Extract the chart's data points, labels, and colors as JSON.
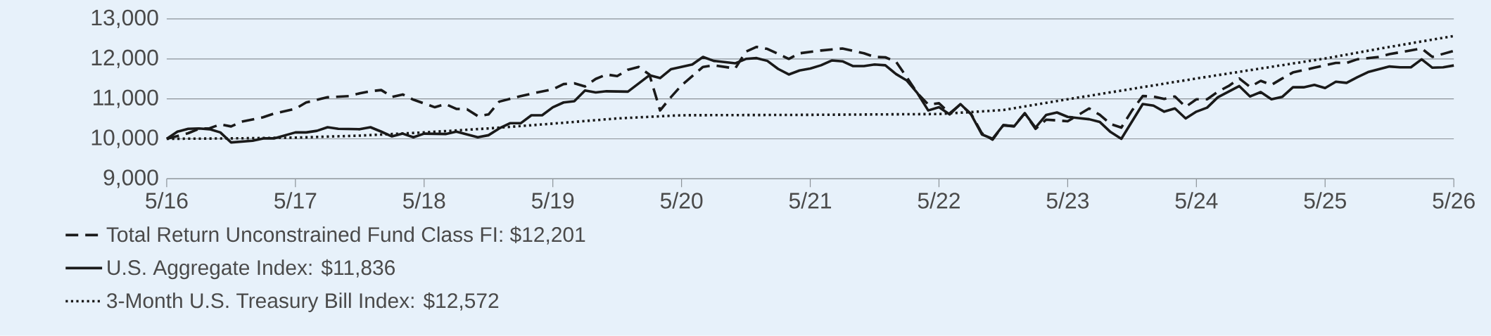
{
  "chart_data": {
    "type": "line",
    "xlim": [
      "2016-05",
      "2026-05"
    ],
    "ylim": [
      9000,
      13000
    ],
    "xticks": [
      {
        "value": "2016-05",
        "label": "5/16"
      },
      {
        "value": "2017-05",
        "label": "5/17"
      },
      {
        "value": "2018-05",
        "label": "5/18"
      },
      {
        "value": "2019-05",
        "label": "5/19"
      },
      {
        "value": "2020-05",
        "label": "5/20"
      },
      {
        "value": "2021-05",
        "label": "5/21"
      },
      {
        "value": "2022-05",
        "label": "5/22"
      },
      {
        "value": "2023-05",
        "label": "5/23"
      },
      {
        "value": "2024-05",
        "label": "5/24"
      },
      {
        "value": "2025-05",
        "label": "5/25"
      },
      {
        "value": "2026-05",
        "label": "5/26"
      }
    ],
    "yticks": [
      {
        "value": 9000,
        "label": "9,000"
      },
      {
        "value": 10000,
        "label": "10,000"
      },
      {
        "value": 11000,
        "label": "11,000"
      },
      {
        "value": 12000,
        "label": "12,000"
      },
      {
        "value": 13000,
        "label": "13,000"
      }
    ],
    "grid": "y",
    "legend": "bottom left",
    "series": [
      {
        "name": "Total Return Unconstrained Fund Class FI: $12,201",
        "color": "#1a1a1a",
        "line_style": "dashed",
        "x": [
          "2016-05",
          "2016-07",
          "2016-08",
          "2016-09",
          "2016-10",
          "2016-11",
          "2016-12",
          "2017-02",
          "2017-03",
          "2017-05",
          "2017-06",
          "2017-08",
          "2017-10",
          "2017-11",
          "2017-12",
          "2018-01",
          "2018-02",
          "2018-03",
          "2018-04",
          "2018-06",
          "2018-07",
          "2018-08",
          "2018-09",
          "2018-10",
          "2018-11",
          "2018-12",
          "2019-02",
          "2019-03",
          "2019-05",
          "2019-06",
          "2019-07",
          "2019-08",
          "2019-09",
          "2019-10",
          "2019-11",
          "2019-12",
          "2020-01",
          "2020-02",
          "2020-03",
          "2020-04",
          "2020-05",
          "2020-06",
          "2020-07",
          "2020-08",
          "2020-09",
          "2020-10",
          "2020-11",
          "2020-12",
          "2021-01",
          "2021-03",
          "2021-04",
          "2021-06",
          "2021-08",
          "2021-10",
          "2021-11",
          "2021-12",
          "2022-01",
          "2022-02",
          "2022-03",
          "2022-04",
          "2022-05",
          "2022-06",
          "2022-07",
          "2022-08",
          "2022-09",
          "2022-10",
          "2022-11",
          "2022-12",
          "2023-01",
          "2023-02",
          "2023-03",
          "2023-05",
          "2023-07",
          "2023-08",
          "2023-09",
          "2023-10",
          "2023-11",
          "2023-12",
          "2024-01",
          "2024-02",
          "2024-03",
          "2024-04",
          "2024-05",
          "2024-06",
          "2024-07",
          "2024-08",
          "2024-09",
          "2024-10",
          "2024-11",
          "2024-12",
          "2025-01",
          "2025-02",
          "2025-04",
          "2025-06",
          "2025-07",
          "2025-08",
          "2025-10",
          "2025-11",
          "2026-02",
          "2026-03",
          "2026-05"
        ],
        "values": [
          10000,
          10140,
          10250,
          10265,
          10360,
          10310,
          10430,
          10540,
          10630,
          10750,
          10910,
          11040,
          11070,
          11140,
          11190,
          11220,
          11050,
          11110,
          10980,
          10790,
          10870,
          10750,
          10740,
          10570,
          10610,
          10930,
          11070,
          11130,
          11240,
          11370,
          11390,
          11310,
          11500,
          11610,
          11570,
          11730,
          11800,
          11610,
          10710,
          11040,
          11340,
          11570,
          11800,
          11840,
          11800,
          11760,
          12180,
          12300,
          12250,
          12000,
          12140,
          12210,
          12260,
          12140,
          12050,
          12040,
          11930,
          11540,
          11140,
          10860,
          10890,
          10640,
          10860,
          10620,
          10140,
          9980,
          10340,
          10320,
          10640,
          10250,
          10480,
          10440,
          10760,
          10600,
          10370,
          10280,
          10710,
          11070,
          11060,
          11000,
          11060,
          10800,
          10990,
          10990,
          11180,
          11320,
          11510,
          11300,
          11450,
          11350,
          11510,
          11660,
          11780,
          11900,
          11900,
          11990,
          12050,
          12120,
          12260,
          12050,
          12201
        ]
      },
      {
        "name": "U.S. Aggregate Index: $11,836",
        "color": "#1a1a1a",
        "line_style": "solid",
        "x": [
          "2016-05",
          "2016-06",
          "2016-07",
          "2016-08",
          "2016-09",
          "2016-10",
          "2016-11",
          "2017-01",
          "2017-02",
          "2017-03",
          "2017-05",
          "2017-06",
          "2017-07",
          "2017-08",
          "2017-09",
          "2017-11",
          "2017-12",
          "2018-01",
          "2018-02",
          "2018-03",
          "2018-04",
          "2018-05",
          "2018-07",
          "2018-08",
          "2018-09",
          "2018-10",
          "2018-11",
          "2018-12",
          "2019-01",
          "2019-02",
          "2019-03",
          "2019-04",
          "2019-05",
          "2019-06",
          "2019-07",
          "2019-08",
          "2019-09",
          "2019-10",
          "2019-12",
          "2020-02",
          "2020-03",
          "2020-04",
          "2020-06",
          "2020-07",
          "2020-08",
          "2020-10",
          "2020-11",
          "2020-12",
          "2021-01",
          "2021-02",
          "2021-03",
          "2021-04",
          "2021-05",
          "2021-06",
          "2021-07",
          "2021-08",
          "2021-09",
          "2021-10",
          "2021-11",
          "2021-12",
          "2022-01",
          "2022-02",
          "2022-03",
          "2022-04",
          "2022-05",
          "2022-06",
          "2022-07",
          "2022-08",
          "2022-09",
          "2022-10",
          "2022-11",
          "2022-12",
          "2023-01",
          "2023-02",
          "2023-03",
          "2023-04",
          "2023-05",
          "2023-06",
          "2023-07",
          "2023-08",
          "2023-09",
          "2023-10",
          "2023-12",
          "2024-01",
          "2024-02",
          "2024-03",
          "2024-04",
          "2024-05",
          "2024-06",
          "2024-07",
          "2024-08",
          "2024-09",
          "2024-10",
          "2024-11",
          "2024-12",
          "2025-01",
          "2025-02",
          "2025-03",
          "2025-04",
          "2025-05",
          "2025-06",
          "2025-07",
          "2025-08",
          "2025-09",
          "2025-11",
          "2025-12",
          "2026-01",
          "2026-02",
          "2026-03",
          "2026-04",
          "2026-05"
        ],
        "values": [
          10000,
          10180,
          10250,
          10260,
          10240,
          10160,
          9910,
          9950,
          10010,
          10010,
          10160,
          10160,
          10200,
          10290,
          10250,
          10240,
          10290,
          10180,
          10060,
          10130,
          10040,
          10130,
          10120,
          10180,
          10110,
          10040,
          10090,
          10260,
          10390,
          10390,
          10590,
          10590,
          10790,
          10910,
          10940,
          11210,
          11160,
          11190,
          11180,
          11590,
          11520,
          11740,
          11860,
          12050,
          11950,
          11890,
          12000,
          12020,
          11950,
          11750,
          11610,
          11710,
          11760,
          11840,
          11960,
          11940,
          11820,
          11820,
          11860,
          11840,
          11620,
          11460,
          11140,
          10710,
          10790,
          10610,
          10870,
          10610,
          10110,
          10000,
          10340,
          10310,
          10640,
          10280,
          10600,
          10660,
          10550,
          10520,
          10490,
          10420,
          10170,
          10000,
          10870,
          10830,
          10680,
          10760,
          10510,
          10680,
          10780,
          11040,
          11180,
          11320,
          11060,
          11170,
          10990,
          11050,
          11290,
          11290,
          11350,
          11270,
          11430,
          11400,
          11540,
          11670,
          11810,
          11790,
          11790,
          11990,
          11780,
          11790,
          11836
        ]
      },
      {
        "name": "3-Month U.S. Treasury Bill Index: $12,572",
        "color": "#1a1a1a",
        "line_style": "dotted",
        "x": [
          "2016-05",
          "2016-11",
          "2017-05",
          "2017-11",
          "2018-05",
          "2018-11",
          "2019-05",
          "2019-11",
          "2020-05",
          "2021-05",
          "2022-05",
          "2022-11",
          "2023-05",
          "2023-11",
          "2024-05",
          "2024-11",
          "2025-05",
          "2025-11",
          "2026-05"
        ],
        "values": [
          10000,
          10010,
          10030,
          10080,
          10160,
          10260,
          10380,
          10510,
          10590,
          10600,
          10620,
          10720,
          10990,
          11250,
          11510,
          11760,
          12010,
          12300,
          12572
        ]
      }
    ]
  }
}
